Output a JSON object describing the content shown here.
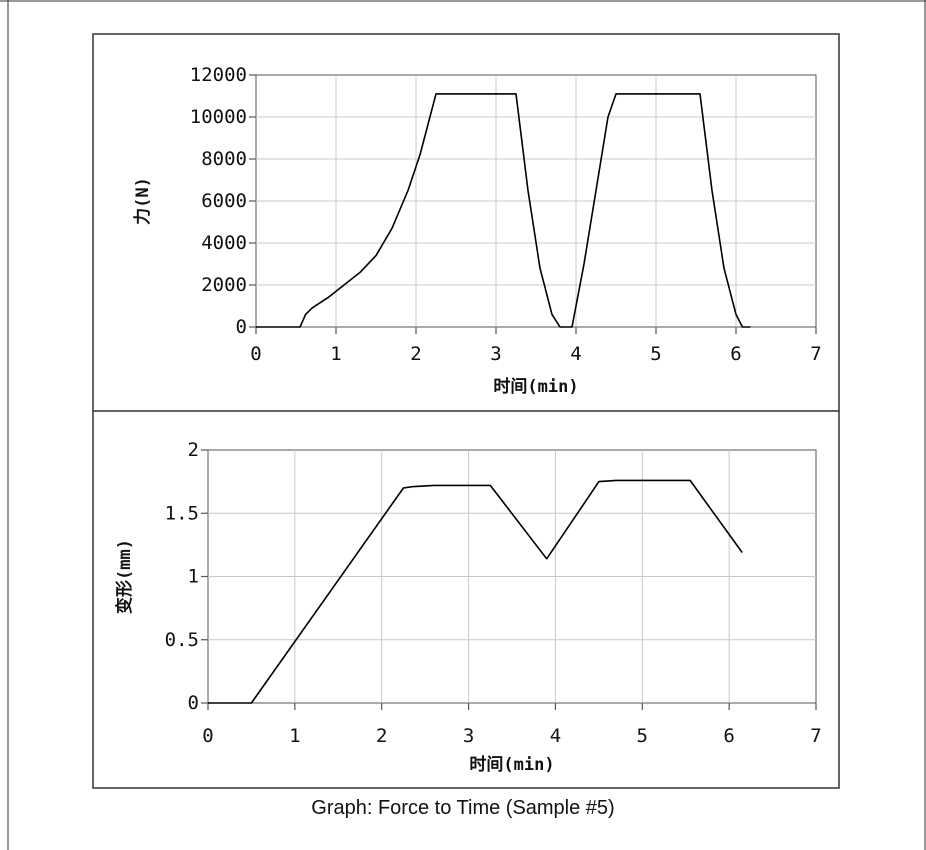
{
  "caption": "Graph: Force to Time (Sample #5)",
  "colors": {
    "line": "#000000",
    "grid": "#c8c8c8",
    "axis": "#555555",
    "frame": "#333333",
    "background": "#ffffff"
  },
  "chart_data": [
    {
      "type": "line",
      "xlabel": "时间(min)",
      "ylabel": "力(N)",
      "xlim": [
        0,
        7
      ],
      "ylim": [
        0,
        12000
      ],
      "xticks": [
        "0",
        "1",
        "2",
        "3",
        "4",
        "5",
        "6",
        "7"
      ],
      "yticks": [
        "0",
        "2000",
        "4000",
        "6000",
        "8000",
        "10000",
        "12000"
      ],
      "grid": true,
      "series": [
        {
          "x": [
            0,
            0.55,
            0.62,
            0.7,
            0.9,
            1.1,
            1.3,
            1.5,
            1.7,
            1.9,
            2.05,
            2.25,
            3.25,
            3.4,
            3.55,
            3.7,
            3.8,
            3.95,
            4.1,
            4.25,
            4.4,
            4.5,
            5.55,
            5.7,
            5.85,
            6.0,
            6.08,
            6.18
          ],
          "y": [
            0,
            0,
            600,
            900,
            1400,
            2000,
            2600,
            3400,
            4700,
            6500,
            8200,
            11100,
            11100,
            6500,
            2800,
            600,
            0,
            0,
            3000,
            6500,
            10000,
            11100,
            11100,
            6500,
            2800,
            600,
            0,
            0
          ]
        }
      ]
    },
    {
      "type": "line",
      "xlabel": "时间(min)",
      "ylabel": "变形(mm)",
      "xlim": [
        0,
        7
      ],
      "ylim": [
        0,
        2
      ],
      "xticks": [
        "0",
        "1",
        "2",
        "3",
        "4",
        "5",
        "6",
        "7"
      ],
      "yticks": [
        "0",
        "0.5",
        "1",
        "1.5",
        "2"
      ],
      "grid": true,
      "series": [
        {
          "x": [
            0,
            0.5,
            2.25,
            2.35,
            2.6,
            3.25,
            3.9,
            4.5,
            4.7,
            5.55,
            6.15
          ],
          "y": [
            0,
            0,
            1.7,
            1.71,
            1.72,
            1.72,
            1.14,
            1.75,
            1.76,
            1.76,
            1.19
          ]
        }
      ]
    }
  ]
}
